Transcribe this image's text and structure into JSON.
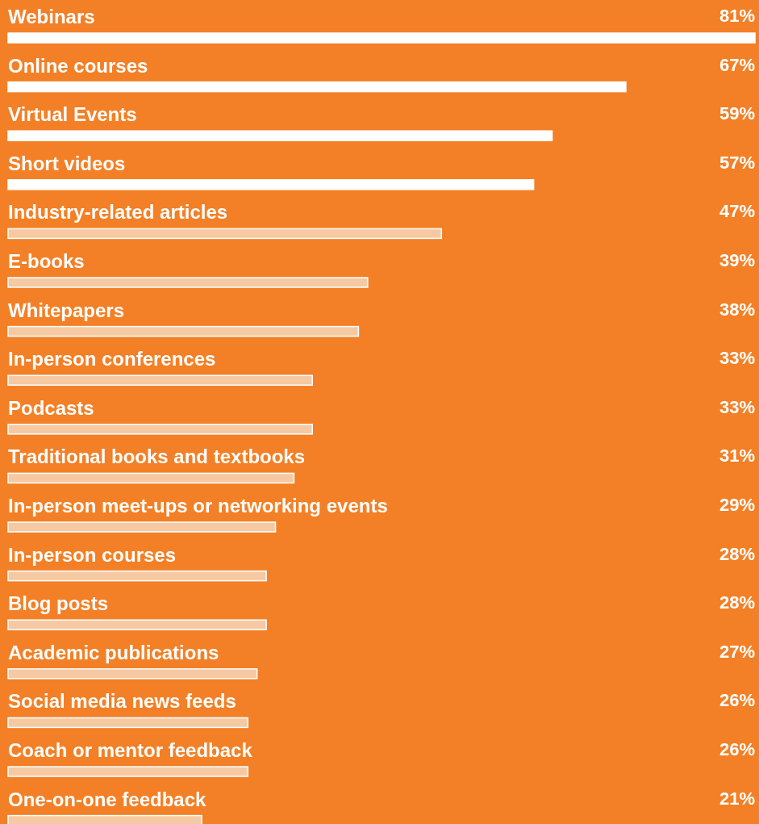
{
  "chart_data": {
    "type": "bar",
    "orientation": "horizontal",
    "categories": [
      "Webinars",
      "Online courses",
      "Virtual Events",
      "Short videos",
      "Industry-related articles",
      "E-books",
      "Whitepapers",
      "In-person conferences",
      "Podcasts",
      "Traditional books and textbooks",
      "In-person meet-ups or networking events",
      "In-person courses",
      "Blog posts",
      "Academic publications",
      "Social media news feeds",
      "Coach or mentor feedback",
      "One-on-one feedback"
    ],
    "values": [
      81,
      67,
      59,
      57,
      47,
      39,
      38,
      33,
      33,
      31,
      29,
      28,
      28,
      27,
      26,
      26,
      21
    ],
    "value_labels": [
      "81%",
      "67%",
      "59%",
      "57%",
      "47%",
      "39%",
      "38%",
      "33%",
      "33%",
      "31%",
      "29%",
      "28%",
      "28%",
      "27%",
      "26%",
      "26%",
      "21%"
    ],
    "colors": [
      "#ffffff",
      "#ffffff",
      "#ffffff",
      "#ffffff",
      "#f6c9a2",
      "#f6c9a2",
      "#f6c9a2",
      "#f6c9a2",
      "#f6c9a2",
      "#f6c9a2",
      "#f6c9a2",
      "#f6c9a2",
      "#f6c9a2",
      "#f6c9a2",
      "#f6c9a2",
      "#f6c9a2",
      "#f6c9a2"
    ],
    "stacked": false
  }
}
